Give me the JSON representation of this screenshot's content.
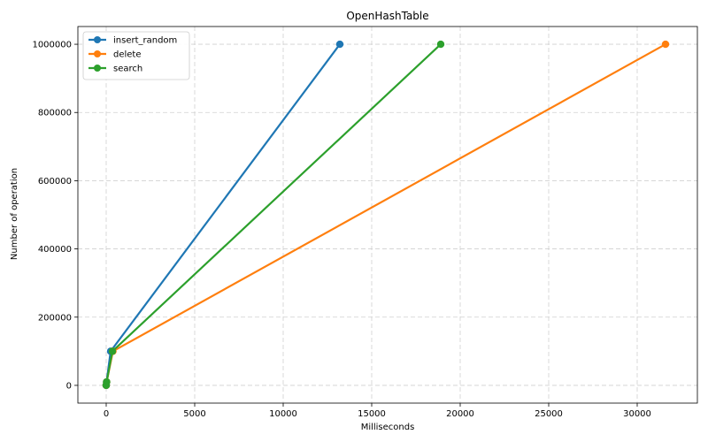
{
  "chart_data": {
    "type": "line",
    "title": "OpenHashTable",
    "xlabel": "Milliseconds",
    "ylabel": "Number of operation",
    "xlim": [
      -1600,
      33400
    ],
    "ylim": [
      -52000,
      1052000
    ],
    "xticks": [
      0,
      5000,
      10000,
      15000,
      20000,
      25000,
      30000
    ],
    "yticks": [
      0,
      200000,
      400000,
      600000,
      800000,
      1000000
    ],
    "grid": true,
    "legend_position": "top-left",
    "series": [
      {
        "name": "insert_random",
        "color": "#1f77b4",
        "points": [
          [
            0,
            0
          ],
          [
            0,
            1000
          ],
          [
            20,
            10000
          ],
          [
            250,
            100000
          ],
          [
            13200,
            1000000
          ]
        ]
      },
      {
        "name": "delete",
        "color": "#ff7f0e",
        "points": [
          [
            0,
            0
          ],
          [
            0,
            1000
          ],
          [
            25,
            10000
          ],
          [
            380,
            100000
          ],
          [
            31600,
            1000000
          ]
        ]
      },
      {
        "name": "search",
        "color": "#2ca02c",
        "points": [
          [
            0,
            0
          ],
          [
            0,
            1000
          ],
          [
            25,
            10000
          ],
          [
            350,
            100000
          ],
          [
            18900,
            1000000
          ]
        ]
      }
    ]
  }
}
